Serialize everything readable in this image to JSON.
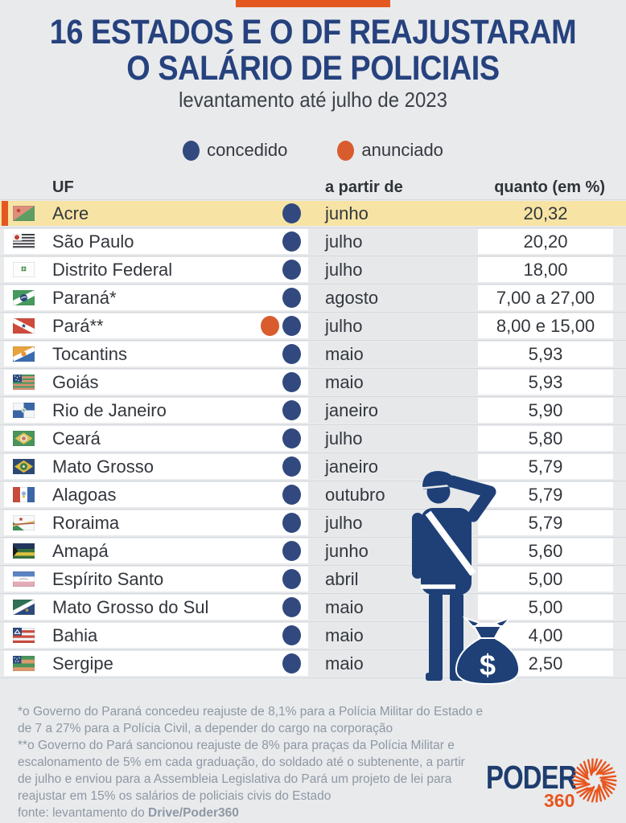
{
  "header": {
    "title_line1": "16 ESTADOS E O DF REAJUSTARAM",
    "title_line2": "O SALÁRIO DE POLICIAIS",
    "subtitle": "levantamento até julho de 2023"
  },
  "legend": {
    "items": [
      {
        "id": "concedido",
        "label": "concedido"
      },
      {
        "id": "anunciado",
        "label": "anunciado"
      }
    ]
  },
  "table": {
    "columns": [
      "UF",
      "a partir de",
      "quanto (em %)"
    ],
    "rows": [
      {
        "uf": "Acre",
        "flag": "flag-acre",
        "status": [
          "concedido"
        ],
        "month": "junho",
        "value": "20,32",
        "highlight": true
      },
      {
        "uf": "São Paulo",
        "flag": "flag-sao-paulo",
        "status": [
          "concedido"
        ],
        "month": "julho",
        "value": "20,20"
      },
      {
        "uf": "Distrito Federal",
        "flag": "flag-distrito-federal",
        "status": [
          "concedido"
        ],
        "month": "julho",
        "value": "18,00"
      },
      {
        "uf": "Paraná*",
        "flag": "flag-parana",
        "status": [
          "concedido"
        ],
        "month": "agosto",
        "value": "7,00 a 27,00"
      },
      {
        "uf": "Pará**",
        "flag": "flag-para",
        "status": [
          "anunciado",
          "concedido"
        ],
        "month": "julho",
        "value": "8,00 e 15,00"
      },
      {
        "uf": "Tocantins",
        "flag": "flag-tocantins",
        "status": [
          "concedido"
        ],
        "month": "maio",
        "value": "5,93"
      },
      {
        "uf": "Goiás",
        "flag": "flag-goias",
        "status": [
          "concedido"
        ],
        "month": "maio",
        "value": "5,93"
      },
      {
        "uf": "Rio de Janeiro",
        "flag": "flag-rio-de-janeiro",
        "status": [
          "concedido"
        ],
        "month": "janeiro",
        "value": "5,90"
      },
      {
        "uf": "Ceará",
        "flag": "flag-ceara",
        "status": [
          "concedido"
        ],
        "month": "julho",
        "value": "5,80"
      },
      {
        "uf": "Mato Grosso",
        "flag": "flag-mato-grosso",
        "status": [
          "concedido"
        ],
        "month": "janeiro",
        "value": "5,79"
      },
      {
        "uf": "Alagoas",
        "flag": "flag-alagoas",
        "status": [
          "concedido"
        ],
        "month": "outubro",
        "value": "5,79"
      },
      {
        "uf": "Roraima",
        "flag": "flag-roraima",
        "status": [
          "concedido"
        ],
        "month": "julho",
        "value": "5,79"
      },
      {
        "uf": "Amapá",
        "flag": "flag-amapa",
        "status": [
          "concedido"
        ],
        "month": "junho",
        "value": "5,60"
      },
      {
        "uf": "Espírito Santo",
        "flag": "flag-espirito-santo",
        "status": [
          "concedido"
        ],
        "month": "abril",
        "value": "5,00"
      },
      {
        "uf": "Mato Grosso do Sul",
        "flag": "flag-mato-grosso-do-sul",
        "status": [
          "concedido"
        ],
        "month": "maio",
        "value": "5,00"
      },
      {
        "uf": "Bahia",
        "flag": "flag-bahia",
        "status": [
          "concedido"
        ],
        "month": "maio",
        "value": "4,00"
      },
      {
        "uf": "Sergipe",
        "flag": "flag-sergipe",
        "status": [
          "concedido"
        ],
        "month": "maio",
        "value": "2,50"
      }
    ]
  },
  "chart_data": {
    "type": "table",
    "title": "16 ESTADOS E O DF REAJUSTARAM O SALÁRIO DE POLICIAIS",
    "subtitle": "levantamento até julho de 2023",
    "legend": [
      "concedido",
      "anunciado"
    ],
    "columns": [
      "UF",
      "status",
      "a partir de",
      "quanto (em %)"
    ],
    "rows": [
      [
        "Acre",
        "concedido",
        "junho",
        "20,32"
      ],
      [
        "São Paulo",
        "concedido",
        "julho",
        "20,20"
      ],
      [
        "Distrito Federal",
        "concedido",
        "julho",
        "18,00"
      ],
      [
        "Paraná*",
        "concedido",
        "agosto",
        "7,00 a 27,00"
      ],
      [
        "Pará**",
        "anunciado + concedido",
        "julho",
        "8,00 e 15,00"
      ],
      [
        "Tocantins",
        "concedido",
        "maio",
        "5,93"
      ],
      [
        "Goiás",
        "concedido",
        "maio",
        "5,93"
      ],
      [
        "Rio de Janeiro",
        "concedido",
        "janeiro",
        "5,90"
      ],
      [
        "Ceará",
        "concedido",
        "julho",
        "5,80"
      ],
      [
        "Mato Grosso",
        "concedido",
        "janeiro",
        "5,79"
      ],
      [
        "Alagoas",
        "concedido",
        "outubro",
        "5,79"
      ],
      [
        "Roraima",
        "concedido",
        "julho",
        "5,79"
      ],
      [
        "Amapá",
        "concedido",
        "junho",
        "5,60"
      ],
      [
        "Espírito Santo",
        "concedido",
        "abril",
        "5,00"
      ],
      [
        "Mato Grosso do Sul",
        "concedido",
        "maio",
        "5,00"
      ],
      [
        "Bahia",
        "concedido",
        "maio",
        "4,00"
      ],
      [
        "Sergipe",
        "concedido",
        "maio",
        "2,50"
      ]
    ]
  },
  "illustration": {
    "name": "police-officer-with-money-bag",
    "dollar_sign": "$"
  },
  "footnotes": {
    "lines": [
      "*o Governo do Paraná concedeu reajuste de 8,1% para a Polícia Militar do Estado e",
      "de 7 a 27% para a Polícia Civil, a depender do cargo na corporação",
      "**o Governo do Pará sancionou reajuste de 8% para praças da Polícia Militar e",
      "escalonamento de 5% em cada graduação, do soldado até o subtenente, a partir",
      "de julho e enviou para a Assembleia Legislativa do Pará um projeto de lei para",
      "reajustar em 15% os salários de policiais civis do Estado"
    ],
    "fonte_prefix": "fonte: levantamento do ",
    "fonte_bold": "Drive/Poder360"
  },
  "logo": {
    "brand": "PODER",
    "suffix": "360"
  },
  "colors": {
    "page_bg": "#e9eaec",
    "accent_orange": "#e4571f",
    "title_navy": "#26427e",
    "dot_blue": "#31497e",
    "dot_orange": "#d85c2d",
    "highlight_yellow": "#f7e4a4",
    "band_gray": "#e6e8ea",
    "divider": "#d4d9de",
    "footnote_gray": "#8d98a4",
    "officer_navy": "#1e4077",
    "logo_navy": "#1e3d6e",
    "logo_orange": "#e8551d"
  }
}
